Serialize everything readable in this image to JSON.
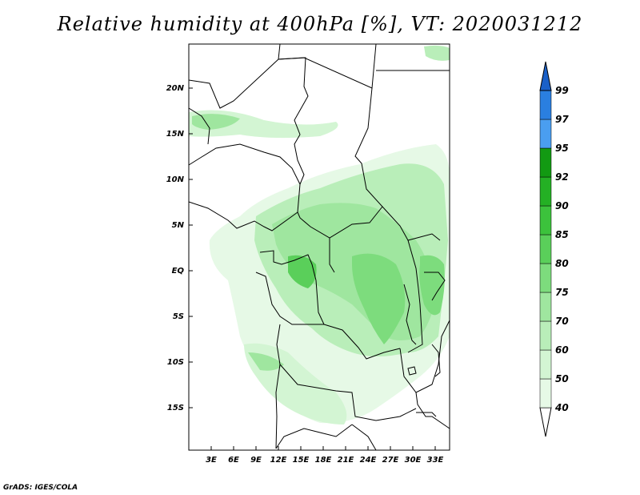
{
  "title": "Relative humidity at 400hPa [%], VT: 2020031212",
  "credit": "GrADS: IGES/COLA",
  "map": {
    "lon_range": [
      0,
      35
    ],
    "lat_range": [
      -20,
      25
    ],
    "y_ticks": [
      "20N",
      "15N",
      "10N",
      "5N",
      "EQ",
      "5S",
      "10S",
      "15S"
    ],
    "x_ticks": [
      "3E",
      "6E",
      "9E",
      "12E",
      "15E",
      "18E",
      "21E",
      "24E",
      "27E",
      "30E",
      "33E"
    ]
  },
  "colorbar": {
    "levels": [
      "40",
      "50",
      "60",
      "70",
      "75",
      "80",
      "85",
      "90",
      "92",
      "95",
      "97",
      "99"
    ],
    "colors": [
      "#ffffff",
      "#e6f9e6",
      "#d3f5d3",
      "#b9eeb9",
      "#9fe69f",
      "#7ddc7d",
      "#5acf5a",
      "#3cc23c",
      "#24b024",
      "#129a12",
      "#4a9ef0",
      "#2a7fe0",
      "#1a60c8"
    ]
  }
}
